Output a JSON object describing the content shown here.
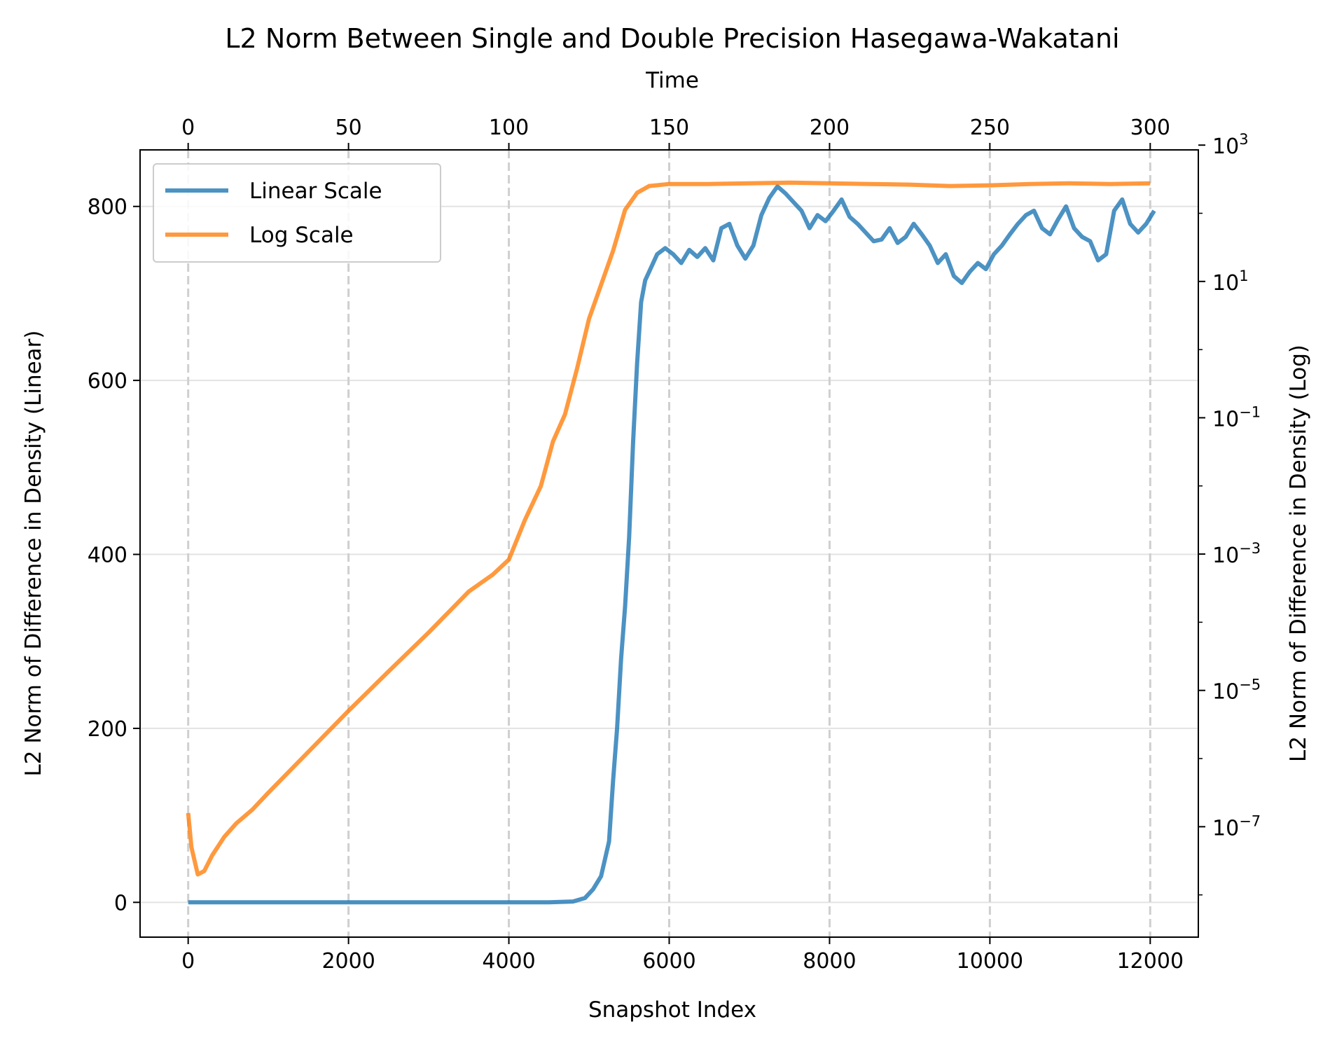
{
  "chart_data": {
    "type": "line",
    "title": "L2 Norm Between Single and Double Precision Hasegawa-Wakatani",
    "xlabel": "Snapshot Index",
    "xlabel_top": "Time",
    "ylabel": "L2 Norm of Difference in Density (Linear)",
    "ylabel_right": "L2 Norm of Difference in Density (Log)",
    "xlim": [
      -600,
      12600
    ],
    "ylim": [
      -40,
      865
    ],
    "ylim_right_log10": [
      -8.62,
      2.93
    ],
    "xticks": [
      0,
      2000,
      4000,
      6000,
      8000,
      10000,
      12000
    ],
    "xtick_labels": [
      "0",
      "2000",
      "4000",
      "6000",
      "8000",
      "10000",
      "12000"
    ],
    "xticks_top": [
      0,
      50,
      100,
      150,
      200,
      250,
      300
    ],
    "xtick_labels_top": [
      "0",
      "50",
      "100",
      "150",
      "200",
      "250",
      "300"
    ],
    "yticks": [
      0,
      200,
      400,
      600,
      800
    ],
    "ytick_labels": [
      "0",
      "200",
      "400",
      "600",
      "800"
    ],
    "yticks_right_exp": [
      3,
      1,
      -1,
      -3,
      -5,
      -7
    ],
    "ytick_labels_right": [
      "3",
      "1",
      "−1",
      "−3",
      "−5",
      "−7"
    ],
    "ytick_base_right": "10",
    "grid": true,
    "legend_position": "top-left",
    "series": [
      {
        "name": "Linear Scale",
        "color": "#1f77b4",
        "axis": "left",
        "points": [
          [
            0,
            0
          ],
          [
            1000,
            0
          ],
          [
            2000,
            0
          ],
          [
            3000,
            0
          ],
          [
            4000,
            0
          ],
          [
            4500,
            0
          ],
          [
            4800,
            1
          ],
          [
            4950,
            5
          ],
          [
            5050,
            15
          ],
          [
            5150,
            30
          ],
          [
            5250,
            70
          ],
          [
            5300,
            140
          ],
          [
            5350,
            200
          ],
          [
            5400,
            280
          ],
          [
            5450,
            340
          ],
          [
            5500,
            420
          ],
          [
            5550,
            530
          ],
          [
            5600,
            620
          ],
          [
            5650,
            690
          ],
          [
            5700,
            715
          ],
          [
            5750,
            725
          ],
          [
            5850,
            745
          ],
          [
            5950,
            752
          ],
          [
            6050,
            745
          ],
          [
            6150,
            735
          ],
          [
            6250,
            750
          ],
          [
            6350,
            742
          ],
          [
            6450,
            752
          ],
          [
            6550,
            738
          ],
          [
            6650,
            775
          ],
          [
            6750,
            780
          ],
          [
            6850,
            755
          ],
          [
            6950,
            740
          ],
          [
            7050,
            755
          ],
          [
            7150,
            790
          ],
          [
            7250,
            810
          ],
          [
            7350,
            823
          ],
          [
            7450,
            815
          ],
          [
            7550,
            805
          ],
          [
            7650,
            795
          ],
          [
            7750,
            775
          ],
          [
            7850,
            790
          ],
          [
            7950,
            783
          ],
          [
            8050,
            795
          ],
          [
            8150,
            808
          ],
          [
            8250,
            788
          ],
          [
            8350,
            780
          ],
          [
            8450,
            770
          ],
          [
            8550,
            760
          ],
          [
            8650,
            762
          ],
          [
            8750,
            775
          ],
          [
            8850,
            758
          ],
          [
            8950,
            765
          ],
          [
            9050,
            780
          ],
          [
            9150,
            768
          ],
          [
            9250,
            755
          ],
          [
            9350,
            735
          ],
          [
            9450,
            745
          ],
          [
            9550,
            720
          ],
          [
            9650,
            712
          ],
          [
            9750,
            725
          ],
          [
            9850,
            735
          ],
          [
            9950,
            728
          ],
          [
            10050,
            745
          ],
          [
            10150,
            755
          ],
          [
            10250,
            768
          ],
          [
            10350,
            780
          ],
          [
            10450,
            790
          ],
          [
            10550,
            795
          ],
          [
            10650,
            775
          ],
          [
            10750,
            768
          ],
          [
            10850,
            785
          ],
          [
            10950,
            800
          ],
          [
            11050,
            775
          ],
          [
            11150,
            765
          ],
          [
            11250,
            760
          ],
          [
            11350,
            738
          ],
          [
            11450,
            745
          ],
          [
            11550,
            795
          ],
          [
            11650,
            808
          ],
          [
            11750,
            780
          ],
          [
            11850,
            770
          ],
          [
            11950,
            780
          ],
          [
            12050,
            795
          ]
        ]
      },
      {
        "name": "Log Scale",
        "color": "#ff7f0e",
        "axis": "right",
        "points": [
          [
            0,
            -6.8
          ],
          [
            40,
            -7.3
          ],
          [
            120,
            -7.7
          ],
          [
            200,
            -7.65
          ],
          [
            300,
            -7.42
          ],
          [
            450,
            -7.15
          ],
          [
            600,
            -6.95
          ],
          [
            800,
            -6.75
          ],
          [
            1000,
            -6.5
          ],
          [
            1500,
            -5.9
          ],
          [
            2000,
            -5.3
          ],
          [
            2500,
            -4.72
          ],
          [
            3000,
            -4.15
          ],
          [
            3500,
            -3.55
          ],
          [
            3800,
            -3.3
          ],
          [
            4000,
            -3.08
          ],
          [
            4200,
            -2.5
          ],
          [
            4400,
            -2.0
          ],
          [
            4550,
            -1.35
          ],
          [
            4700,
            -0.95
          ],
          [
            4850,
            -0.28
          ],
          [
            5000,
            0.45
          ],
          [
            5150,
            0.95
          ],
          [
            5300,
            1.45
          ],
          [
            5450,
            2.05
          ],
          [
            5600,
            2.3
          ],
          [
            5750,
            2.4
          ],
          [
            6000,
            2.43
          ],
          [
            6500,
            2.43
          ],
          [
            7000,
            2.44
          ],
          [
            7500,
            2.45
          ],
          [
            8000,
            2.44
          ],
          [
            8500,
            2.43
          ],
          [
            9000,
            2.42
          ],
          [
            9500,
            2.4
          ],
          [
            10000,
            2.41
          ],
          [
            10500,
            2.43
          ],
          [
            11000,
            2.44
          ],
          [
            11500,
            2.43
          ],
          [
            12000,
            2.44
          ]
        ]
      }
    ]
  }
}
